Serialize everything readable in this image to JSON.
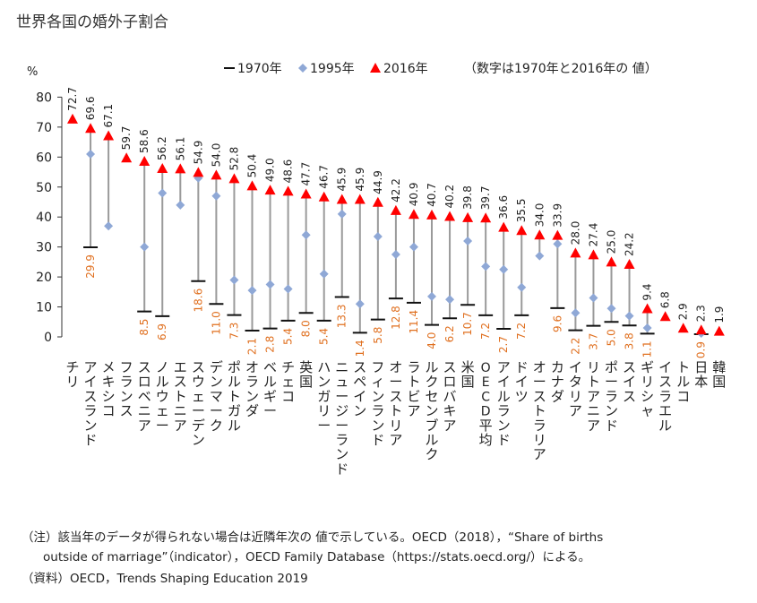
{
  "title": "世界各国の婚外子割合",
  "chart_data": {
    "type": "scatter",
    "title": "世界各国の婚外子割合",
    "y_unit": "%",
    "ylim": [
      0,
      80
    ],
    "y_ticks": [
      0,
      10,
      20,
      30,
      40,
      50,
      60,
      70,
      80
    ],
    "legend": {
      "items": [
        "1970年",
        "1995年",
        "2016年"
      ],
      "position": "top"
    },
    "legend_note": "（数字は1970年と2016年の 値）",
    "categories": [
      "チリ",
      "アイスランド",
      "メキシコ",
      "フランス",
      "スロベニア",
      "ノルウェー",
      "エストニア",
      "スウェーデン",
      "デンマーク",
      "ポルトガル",
      "オランダ",
      "ベルギー",
      "チェコ",
      "英国",
      "ハンガリー",
      "ニュージーランド",
      "スペイン",
      "フィンランド",
      "オーストリア",
      "ラトビア",
      "ルクセンブルク",
      "スロバキア",
      "米国",
      "OECD平均",
      "アイルランド",
      "ドイツ",
      "オーストラリア",
      "カナダ",
      "イタリア",
      "リトアニア",
      "ポーランド",
      "スイス",
      "ギリシャ",
      "イスラエル",
      "トルコ",
      "日本",
      "韓国"
    ],
    "series": [
      {
        "name": "1970年",
        "values": [
          null,
          29.9,
          null,
          null,
          8.5,
          6.9,
          null,
          18.6,
          11.0,
          7.3,
          2.1,
          2.8,
          5.4,
          8.0,
          5.4,
          13.3,
          1.4,
          5.8,
          12.8,
          11.4,
          4.0,
          6.2,
          10.7,
          7.2,
          2.7,
          7.2,
          null,
          9.6,
          2.2,
          3.7,
          5.0,
          3.8,
          1.1,
          null,
          null,
          0.9,
          null
        ]
      },
      {
        "name": "1995年",
        "values": [
          null,
          61.0,
          37.0,
          null,
          30.0,
          48.0,
          44.0,
          53.0,
          47.0,
          19.0,
          15.5,
          17.5,
          16.0,
          34.0,
          21.0,
          41.0,
          11.0,
          33.5,
          27.5,
          30.0,
          13.5,
          12.5,
          32.0,
          23.5,
          22.5,
          16.5,
          27.0,
          31.0,
          8.0,
          13.0,
          9.5,
          7.0,
          3.0,
          null,
          null,
          1.2,
          null
        ]
      },
      {
        "name": "2016年",
        "values": [
          72.7,
          69.6,
          67.1,
          59.7,
          58.6,
          56.2,
          56.1,
          54.9,
          54.0,
          52.8,
          50.4,
          49.0,
          48.6,
          47.7,
          46.7,
          45.9,
          45.9,
          44.9,
          42.2,
          40.9,
          40.7,
          40.2,
          39.8,
          39.7,
          36.6,
          35.5,
          34.0,
          33.9,
          28.0,
          27.4,
          25.0,
          24.2,
          9.4,
          6.8,
          2.9,
          2.3,
          1.9
        ]
      }
    ],
    "labels_1970": [
      "",
      "29.9",
      "",
      "",
      "8.5",
      "6.9",
      "",
      "18.6",
      "11.0",
      "7.3",
      "2.1",
      "2.8",
      "5.4",
      "8.0",
      "5.4",
      "13.3",
      "1.4",
      "5.8",
      "12.8",
      "11.4",
      "4.0",
      "6.2",
      "10.7",
      "7.2",
      "2.7",
      "7.2",
      "",
      "9.6",
      "2.2",
      "3.7",
      "5.0",
      "3.8",
      "1.1",
      "",
      "",
      "0.9",
      ""
    ],
    "labels_2016": [
      "72.7",
      "69.6",
      "67.1",
      "59.7",
      "58.6",
      "56.2",
      "56.1",
      "54.9",
      "54.0",
      "52.8",
      "50.4",
      "49.0",
      "48.6",
      "47.7",
      "46.7",
      "45.9",
      "45.9",
      "44.9",
      "42.2",
      "40.9",
      "40.7",
      "40.2",
      "39.8",
      "39.7",
      "36.6",
      "35.5",
      "34.0",
      "33.9",
      "28.0",
      "27.4",
      "25.0",
      "24.2",
      "9.4",
      "6.8",
      "2.9",
      "2.3",
      "1.9"
    ],
    "colors": {
      "1970": "#111111",
      "1995": "#8FA8D6",
      "2016": "#FF0000",
      "label_1970": "#E07020",
      "connector": "#9a9a9a"
    }
  },
  "notes": {
    "line1": "（注）該当年のデータが得られない場合は近隣年次の 値で示している。OECD（2018），“Share of births",
    "line2": "outside of marriage”（indicator），OECD Family Database（https://stats.oecd.org/）による。",
    "line3": "（資料）OECD，Trends Shaping Education 2019"
  }
}
